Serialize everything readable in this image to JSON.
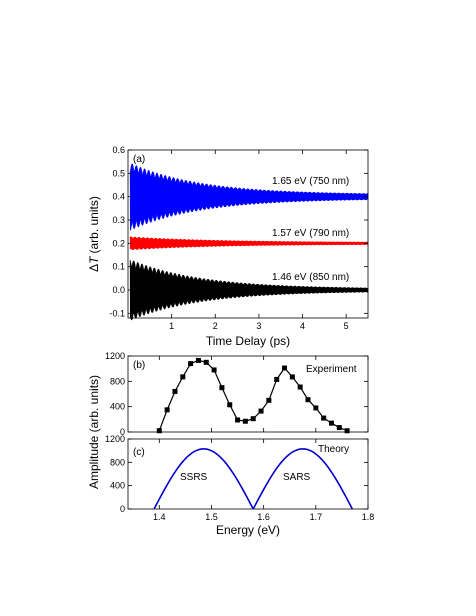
{
  "figure": {
    "y_axis_group_label": "Amplitude (arb. units)"
  },
  "chart_data": [
    {
      "panel_label": "(a)",
      "type": "line",
      "xlabel": "Time Delay (ps)",
      "ylabel": "ΔT (arb. units)",
      "ylabel_symbol": "Δ",
      "ylabel_var": "T",
      "ylabel_units": "(arb. units)",
      "xlim": [
        0,
        5.5
      ],
      "ylim": [
        -0.12,
        0.6
      ],
      "xticks": [
        1,
        2,
        3,
        4,
        5
      ],
      "yticks": [
        -0.1,
        0.0,
        0.1,
        0.2,
        0.3,
        0.4,
        0.5,
        0.6
      ],
      "ytick_labels": [
        "-0.1",
        "0.0",
        "0.1",
        "0.2",
        "0.3",
        "0.4",
        "0.5",
        "0.6"
      ],
      "grid": false,
      "series": [
        {
          "name": "1.65 eV (750 nm)",
          "color": "#0000ff",
          "offset": 0.4,
          "initial_amplitude": 0.14,
          "decay_ps": 1.6,
          "final_amplitude": 0.01
        },
        {
          "name": "1.57 eV (790 nm)",
          "color": "#ff0000",
          "offset": 0.2,
          "initial_amplitude": 0.025,
          "decay_ps": 2.0,
          "final_amplitude": 0.005
        },
        {
          "name": "1.46 eV (850 nm)",
          "color": "#000000",
          "offset": 0.0,
          "initial_amplitude": 0.13,
          "decay_ps": 1.6,
          "final_amplitude": 0.006
        }
      ]
    },
    {
      "panel_label": "(b)",
      "type": "line",
      "legend_text": "Experiment",
      "xlim": [
        1.34,
        1.8
      ],
      "ylim": [
        0,
        1200
      ],
      "yticks": [
        0,
        400,
        800,
        1200
      ],
      "xticks": [
        1.4,
        1.5,
        1.6,
        1.7,
        1.8
      ],
      "grid": false,
      "series": [
        {
          "name": "Experiment",
          "color": "#000000",
          "marker": "square",
          "x": [
            1.4,
            1.415,
            1.43,
            1.445,
            1.46,
            1.475,
            1.49,
            1.505,
            1.52,
            1.535,
            1.55,
            1.565,
            1.58,
            1.595,
            1.61,
            1.625,
            1.64,
            1.655,
            1.67,
            1.685,
            1.7,
            1.715,
            1.73,
            1.745,
            1.76
          ],
          "y": [
            20,
            350,
            640,
            870,
            1080,
            1130,
            1100,
            980,
            700,
            430,
            190,
            170,
            210,
            330,
            500,
            830,
            1010,
            870,
            710,
            510,
            380,
            220,
            140,
            70,
            20
          ]
        }
      ]
    },
    {
      "panel_label": "(c)",
      "type": "line",
      "legend_text": "Theory",
      "xlabel": "Energy (eV)",
      "xlim": [
        1.34,
        1.8
      ],
      "ylim": [
        0,
        1200
      ],
      "yticks": [
        0,
        400,
        800,
        1200
      ],
      "xticks": [
        1.4,
        1.5,
        1.6,
        1.7,
        1.8
      ],
      "xtick_labels": [
        "1.4",
        "1.5",
        "1.6",
        "1.7",
        "1.8"
      ],
      "grid": false,
      "annotations": [
        "SSRS",
        "SARS"
      ],
      "series": [
        {
          "name": "SSRS",
          "color": "#0000cc",
          "x_start": 1.39,
          "x_end": 1.58,
          "peak": 1030
        },
        {
          "name": "SARS",
          "color": "#0000cc",
          "x_start": 1.58,
          "x_end": 1.77,
          "peak": 1030
        }
      ]
    }
  ]
}
